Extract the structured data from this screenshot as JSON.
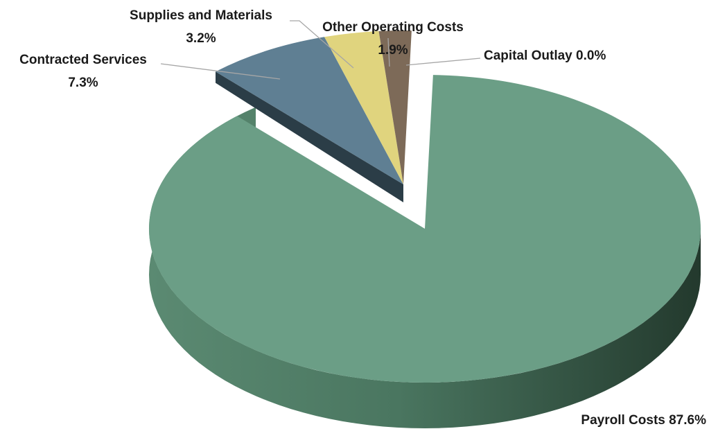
{
  "chart_data": {
    "type": "pie",
    "style": "3d-exploded",
    "slices": [
      {
        "name": "Payroll Costs",
        "value": 87.6,
        "display": "87.6%",
        "color": "#6b9e86"
      },
      {
        "name": "Contracted Services",
        "value": 7.3,
        "display": "7.3%",
        "color": "#5f7f93"
      },
      {
        "name": "Supplies and Materials",
        "value": 3.2,
        "display": "3.2%",
        "color": "#e0d47e"
      },
      {
        "name": "Other Operating Costs",
        "value": 1.9,
        "display": "1.9%",
        "color": "#7d6a58"
      },
      {
        "name": "Capital Outlay",
        "value": 0.0,
        "display": "0.0%",
        "color": "#6b9e86"
      }
    ]
  },
  "labels": {
    "payroll": "Payroll Costs 87.6%",
    "contracted_name": "Contracted Services",
    "contracted_pct": "7.3%",
    "supplies_name": "Supplies and Materials",
    "supplies_pct": "3.2%",
    "other_name": "Other Operating Costs",
    "other_pct": "1.9%",
    "capital": "Capital Outlay  0.0%"
  }
}
